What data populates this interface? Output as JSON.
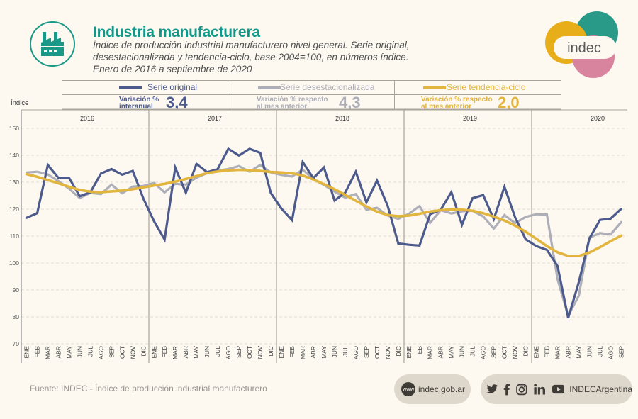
{
  "header": {
    "title": "Industria manufacturera",
    "subtitle_lines": [
      "Índice de producción industrial manufacturero nivel general. Serie original,",
      "desestacionalizada y tendencia-ciclo, base 2004=100, en números índice.",
      "Enero de 2016 a septiembre de 2020"
    ],
    "icon": "factory-icon",
    "brand": "indec"
  },
  "legend": [
    {
      "name": "Serie original",
      "color": "#4d5a8c",
      "variation_label": [
        "Variación %",
        "interanual"
      ],
      "variation_value": "3,4"
    },
    {
      "name": "Serie desestacionalizada",
      "color": "#aeaeb8",
      "variation_label": [
        "Variación % respecto",
        "al mes anterior"
      ],
      "variation_value": "4,3"
    },
    {
      "name": "Serie tendencia-ciclo",
      "color": "#e2b53e",
      "variation_label": [
        "Variación % respecto",
        "al mes anterior"
      ],
      "variation_value": "2,0"
    }
  ],
  "chart_data": {
    "type": "line",
    "title": "Industria manufacturera",
    "ylabel": "Índice",
    "xlabel": "",
    "ylim": [
      70,
      150
    ],
    "yticks": [
      70,
      80,
      90,
      100,
      110,
      120,
      130,
      140,
      150
    ],
    "grid": true,
    "legend_position": "top",
    "years": [
      "2016",
      "2017",
      "2018",
      "2019",
      "2020"
    ],
    "months": [
      "ENE",
      "FEB",
      "MAR",
      "ABR",
      "MAY",
      "JUN",
      "JUL",
      "AGO",
      "SEP",
      "OCT",
      "NOV",
      "DIC"
    ],
    "x": [
      "ENE 2016",
      "FEB 2016",
      "MAR 2016",
      "ABR 2016",
      "MAY 2016",
      "JUN 2016",
      "JUL 2016",
      "AGO 2016",
      "SEP 2016",
      "OCT 2016",
      "NOV 2016",
      "DIC 2016",
      "ENE 2017",
      "FEB 2017",
      "MAR 2017",
      "ABR 2017",
      "MAY 2017",
      "JUN 2017",
      "JUL 2017",
      "AGO 2017",
      "SEP 2017",
      "OCT 2017",
      "NOV 2017",
      "DIC 2017",
      "ENE 2018",
      "FEB 2018",
      "MAR 2018",
      "ABR 2018",
      "MAY 2018",
      "JUN 2018",
      "JUL 2018",
      "AGO 2018",
      "SEP 2018",
      "OCT 2018",
      "NOV 2018",
      "DIC 2018",
      "ENE 2019",
      "FEB 2019",
      "MAR 2019",
      "ABR 2019",
      "MAY 2019",
      "JUN 2019",
      "JUL 2019",
      "AGO 2019",
      "SEP 2019",
      "OCT 2019",
      "NOV 2019",
      "DIC 2019",
      "ENE 2020",
      "FEB 2020",
      "MAR 2020",
      "ABR 2020",
      "MAY 2020",
      "JUN 2020",
      "JUL 2020",
      "AGO 2020",
      "SEP 2020"
    ],
    "series": [
      {
        "name": "Serie original",
        "values": [
          116.8,
          118.5,
          136.4,
          131.6,
          131.6,
          124.8,
          126.2,
          133.2,
          134.9,
          132.8,
          134.2,
          123.9,
          115.5,
          108.7,
          135.4,
          126.1,
          136.8,
          133.7,
          134.9,
          142.4,
          139.9,
          142.4,
          140.9,
          126.0,
          120.2,
          115.9,
          137.5,
          131.5,
          135.5,
          123.2,
          126.1,
          133.9,
          122.5,
          130.6,
          121.3,
          107.3,
          106.8,
          106.5,
          118.1,
          119.8,
          126.3,
          114.2,
          124.1,
          125.2,
          116.3,
          128.3,
          117.0,
          108.8,
          106.3,
          104.9,
          98.9,
          79.6,
          92.9,
          109.1,
          116.0,
          116.5,
          120.1
        ]
      },
      {
        "name": "Serie desestacionalizada",
        "values": [
          133.6,
          133.9,
          132.9,
          130.4,
          127.6,
          124.1,
          126.0,
          125.6,
          129.1,
          125.9,
          128.4,
          128.6,
          129.7,
          126.2,
          129.4,
          129.1,
          131.7,
          133.4,
          134.3,
          134.9,
          136.0,
          133.9,
          136.4,
          133.6,
          132.7,
          132.1,
          134.7,
          131.1,
          129.0,
          126.5,
          124.3,
          125.6,
          119.8,
          120.5,
          117.6,
          116.4,
          118.3,
          121.1,
          114.9,
          119.6,
          118.4,
          119.2,
          119.4,
          117.3,
          112.8,
          117.8,
          114.8,
          117.1,
          118.1,
          118.0,
          94.0,
          80.4,
          87.9,
          109.4,
          111.1,
          110.6,
          115.2
        ]
      },
      {
        "name": "Serie tendencia-ciclo",
        "values": [
          133.0,
          132.0,
          130.8,
          129.6,
          128.3,
          127.1,
          126.5,
          126.3,
          126.6,
          126.9,
          127.4,
          128.1,
          128.8,
          129.4,
          130.2,
          131.2,
          132.3,
          133.4,
          134.0,
          134.4,
          134.6,
          134.5,
          134.2,
          133.8,
          133.6,
          133.3,
          132.5,
          131.0,
          129.3,
          127.4,
          125.3,
          123.1,
          121.0,
          119.1,
          117.8,
          117.4,
          117.6,
          118.3,
          119.1,
          119.6,
          119.9,
          119.8,
          119.4,
          118.5,
          117.2,
          115.8,
          113.9,
          111.6,
          109.0,
          106.3,
          104.0,
          102.6,
          102.6,
          103.9,
          105.9,
          108.1,
          110.2
        ]
      }
    ]
  },
  "footer": {
    "source": "Fuente: INDEC - Índice de producción industrial manufacturero",
    "website_badge": "www",
    "website": "indec.gob.ar",
    "social_icons": [
      "twitter-icon",
      "facebook-icon",
      "instagram-icon",
      "linkedin-icon",
      "youtube-icon"
    ],
    "social_handle": "INDECArgentina"
  }
}
